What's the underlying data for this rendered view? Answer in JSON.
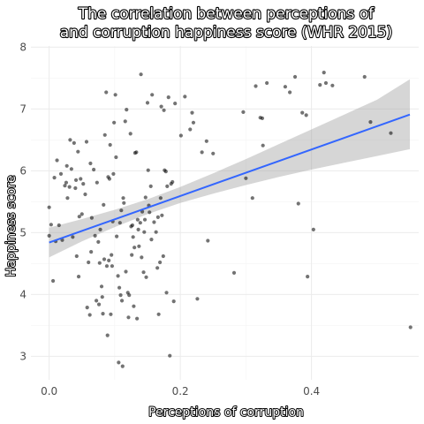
{
  "chart_data": {
    "type": "scatter",
    "title": [
      "The correlation between perceptions of",
      "and corruption happiness score (WHR 2015)"
    ],
    "xlabel": "Perceptions of corruption",
    "ylabel": "Happiness score",
    "xlim": [
      -0.0278,
      0.5635
    ],
    "ylim": [
      2.62,
      8.02
    ],
    "xticks": [
      0.0,
      0.2,
      0.4
    ],
    "xtick_labels": [
      "0.0",
      "0.2",
      "0.4"
    ],
    "yticks": [
      3,
      4,
      5,
      6,
      7,
      8
    ],
    "ytick_labels": [
      "3",
      "4",
      "5",
      "6",
      "7",
      "8"
    ],
    "grid": true,
    "colors": {
      "points": "#000000",
      "line": "#3366ff",
      "ribbon": "#999999"
    },
    "series": [
      {
        "values": [
          [
            0.0,
            5.41
          ],
          [
            0.0,
            4.95
          ],
          [
            0.003,
            5.13
          ],
          [
            0.006,
            4.22
          ],
          [
            0.008,
            5.89
          ],
          [
            0.01,
            4.86
          ],
          [
            0.012,
            6.17
          ],
          [
            0.015,
            5.12
          ],
          [
            0.018,
            5.95
          ],
          [
            0.02,
            4.88
          ],
          [
            0.024,
            5.76
          ],
          [
            0.026,
            5.81
          ],
          [
            0.027,
            6.08
          ],
          [
            0.028,
            5.56
          ],
          [
            0.031,
            5.74
          ],
          [
            0.032,
            6.5
          ],
          [
            0.034,
            6.03
          ],
          [
            0.036,
            4.93
          ],
          [
            0.038,
            6.45
          ],
          [
            0.04,
            5.72
          ],
          [
            0.041,
            5.85
          ],
          [
            0.042,
            4.62
          ],
          [
            0.044,
            6.31
          ],
          [
            0.045,
            4.29
          ],
          [
            0.046,
            5.26
          ],
          [
            0.048,
            5.87
          ],
          [
            0.05,
            5.3
          ],
          [
            0.052,
            5.79
          ],
          [
            0.055,
            5.62
          ],
          [
            0.057,
            6.47
          ],
          [
            0.058,
            3.79
          ],
          [
            0.06,
            4.52
          ],
          [
            0.062,
            3.67
          ],
          [
            0.063,
            6.12
          ],
          [
            0.064,
            4.69
          ],
          [
            0.065,
            5.24
          ],
          [
            0.068,
            6.02
          ],
          [
            0.07,
            4.95
          ],
          [
            0.072,
            3.9
          ],
          [
            0.073,
            5.81
          ],
          [
            0.075,
            4.85
          ],
          [
            0.076,
            3.84
          ],
          [
            0.077,
            4.51
          ],
          [
            0.078,
            5.05
          ],
          [
            0.08,
            4.13
          ],
          [
            0.081,
            3.96
          ],
          [
            0.082,
            3.69
          ],
          [
            0.083,
            5.45
          ],
          [
            0.084,
            4.57
          ],
          [
            0.085,
            6.58
          ],
          [
            0.087,
            7.27
          ],
          [
            0.088,
            4.46
          ],
          [
            0.089,
            3.34
          ],
          [
            0.09,
            5.9
          ],
          [
            0.091,
            4.55
          ],
          [
            0.092,
            5.87
          ],
          [
            0.093,
            6.42
          ],
          [
            0.094,
            3.68
          ],
          [
            0.095,
            4.64
          ],
          [
            0.096,
            4.46
          ],
          [
            0.097,
            5.18
          ],
          [
            0.098,
            5.95
          ],
          [
            0.099,
            6.78
          ],
          [
            0.101,
            7.23
          ],
          [
            0.102,
            6.22
          ],
          [
            0.103,
            4.94
          ],
          [
            0.105,
            4.3
          ],
          [
            0.106,
            2.9
          ],
          [
            0.107,
            4.11
          ],
          [
            0.108,
            5.16
          ],
          [
            0.109,
            3.99
          ],
          [
            0.11,
            5.36
          ],
          [
            0.111,
            3.9
          ],
          [
            0.112,
            2.84
          ],
          [
            0.113,
            5.56
          ],
          [
            0.114,
            5.48
          ],
          [
            0.116,
            6.8
          ],
          [
            0.117,
            4.37
          ],
          [
            0.118,
            6.99
          ],
          [
            0.12,
            4.03
          ],
          [
            0.121,
            3.63
          ],
          [
            0.122,
            3.99
          ],
          [
            0.124,
            6.6
          ],
          [
            0.125,
            5.1
          ],
          [
            0.126,
            4.64
          ],
          [
            0.127,
            5.12
          ],
          [
            0.128,
            4.93
          ],
          [
            0.129,
            3.81
          ],
          [
            0.13,
            4.76
          ],
          [
            0.131,
            6.29
          ],
          [
            0.133,
            6.3
          ],
          [
            0.134,
            3.61
          ],
          [
            0.135,
            5.21
          ],
          [
            0.136,
            5.05
          ],
          [
            0.137,
            4.78
          ],
          [
            0.139,
            5.16
          ],
          [
            0.14,
            7.56
          ],
          [
            0.141,
            4.6
          ],
          [
            0.142,
            5.34
          ],
          [
            0.144,
            4.36
          ],
          [
            0.145,
            5.01
          ],
          [
            0.146,
            5.21
          ],
          [
            0.147,
            5.57
          ],
          [
            0.148,
            4.28
          ],
          [
            0.15,
            7.1
          ],
          [
            0.151,
            6.01
          ],
          [
            0.152,
            5.44
          ],
          [
            0.153,
            5.33
          ],
          [
            0.155,
            5.75
          ],
          [
            0.156,
            4.89
          ],
          [
            0.157,
            7.23
          ],
          [
            0.16,
            5.17
          ],
          [
            0.163,
            5.01
          ],
          [
            0.165,
            4.43
          ],
          [
            0.166,
            5.25
          ],
          [
            0.167,
            3.68
          ],
          [
            0.169,
            4.52
          ],
          [
            0.17,
            5.56
          ],
          [
            0.171,
            7.04
          ],
          [
            0.172,
            5.28
          ],
          [
            0.174,
            4.62
          ],
          [
            0.175,
            6.98
          ],
          [
            0.176,
            6.01
          ],
          [
            0.178,
            5.99
          ],
          [
            0.179,
            4.03
          ],
          [
            0.18,
            5.75
          ],
          [
            0.182,
            7.19
          ],
          [
            0.184,
            3.01
          ],
          [
            0.186,
            5.79
          ],
          [
            0.188,
            5.82
          ],
          [
            0.19,
            3.89
          ],
          [
            0.192,
            7.09
          ],
          [
            0.201,
            6.57
          ],
          [
            0.207,
            7.2
          ],
          [
            0.215,
            6.67
          ],
          [
            0.218,
            6.94
          ],
          [
            0.22,
            6.78
          ],
          [
            0.226,
            3.93
          ],
          [
            0.233,
            6.3
          ],
          [
            0.24,
            6.48
          ],
          [
            0.242,
            4.87
          ],
          [
            0.25,
            6.28
          ],
          [
            0.282,
            4.35
          ],
          [
            0.296,
            6.95
          ],
          [
            0.3,
            5.88
          ],
          [
            0.31,
            5.56
          ],
          [
            0.315,
            7.37
          ],
          [
            0.322,
            6.86
          ],
          [
            0.325,
            6.85
          ],
          [
            0.326,
            6.41
          ],
          [
            0.332,
            7.42
          ],
          [
            0.36,
            7.36
          ],
          [
            0.367,
            7.27
          ],
          [
            0.375,
            7.52
          ],
          [
            0.38,
            5.47
          ],
          [
            0.386,
            6.94
          ],
          [
            0.392,
            6.9
          ],
          [
            0.394,
            4.29
          ],
          [
            0.403,
            5.05
          ],
          [
            0.413,
            7.39
          ],
          [
            0.419,
            7.59
          ],
          [
            0.422,
            7.42
          ],
          [
            0.432,
            7.38
          ],
          [
            0.481,
            7.52
          ],
          [
            0.49,
            6.79
          ],
          [
            0.521,
            6.61
          ],
          [
            0.551,
            3.47
          ]
        ]
      }
    ],
    "fit": {
      "method": "linear",
      "x": [
        0.0,
        0.55
      ],
      "y": [
        4.84,
        6.91
      ]
    },
    "confidence_band": {
      "x": [
        0.0,
        0.05,
        0.1,
        0.15,
        0.2,
        0.25,
        0.3,
        0.35,
        0.4,
        0.45,
        0.5,
        0.55
      ],
      "lower": [
        4.6,
        4.86,
        5.09,
        5.3,
        5.48,
        5.63,
        5.77,
        5.9,
        6.02,
        6.13,
        6.24,
        6.35
      ],
      "upper": [
        5.08,
        5.22,
        5.37,
        5.54,
        5.74,
        5.96,
        6.19,
        6.43,
        6.67,
        6.91,
        7.15,
        7.48
      ]
    }
  }
}
